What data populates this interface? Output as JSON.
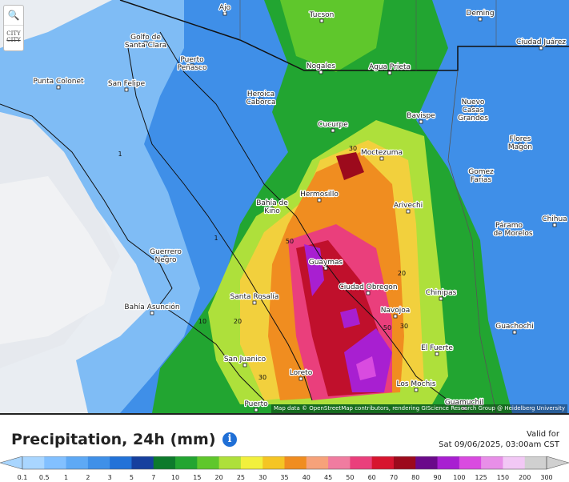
{
  "map": {
    "cities": [
      "Ajo",
      "Tucson",
      "Deming",
      "Golfo de",
      "Santa Clara",
      "Ciudad Juárez",
      "Puerto",
      "Peñasco",
      "Nogales",
      "Agua Prieta",
      "Punta Colonet",
      "San Felipe",
      "Heroica",
      "Caborca",
      "Nuevo",
      "Casas",
      "Grandes",
      "Bavispe",
      "Cucurpe",
      "Flores",
      "Magón",
      "Moctezuma",
      "Gomez",
      "Farias",
      "Hermosillo",
      "Arivechi",
      "Bahía de",
      "Kino",
      "Chihua",
      "Páramo",
      "de Morelos",
      "Guerrero",
      "Negro",
      "Guaymas",
      "Ciudad Obregon",
      "Santa Rosalía",
      "Chinipas",
      "Bahía Asunción",
      "Navojoa",
      "Guachochi",
      "El Fuerte",
      "San Juanico",
      "Loreto",
      "Los Mochis",
      "Guamuchil",
      "Puerto"
    ],
    "contour_labels": [
      "30",
      "50",
      "20",
      "50",
      "30",
      "20",
      "30",
      "10",
      "1",
      "1"
    ],
    "attribution": "Map data © OpenStreetMap contributors, rendering GIScience Research Group @ Heidelberg University",
    "controls": {
      "zoom": "🔍",
      "city_toggle_top": "CITY",
      "city_toggle_bottom": "CITY"
    }
  },
  "legend": {
    "title": "Precipitation, 24h (mm)",
    "info": "i",
    "valid_label": "Valid for",
    "valid_time": "Sat 09/06/2025, 03:00am CST",
    "labels": [
      "0.1",
      "0.5",
      "1",
      "2",
      "3",
      "5",
      "7",
      "10",
      "15",
      "20",
      "25",
      "30",
      "35",
      "40",
      "45",
      "50",
      "60",
      "70",
      "80",
      "90",
      "100",
      "125",
      "150",
      "200",
      "300"
    ],
    "colors": [
      "#a9d6ff",
      "#82c0ff",
      "#5ea9f5",
      "#3f90e8",
      "#2272d8",
      "#163f9e",
      "#0d7a2c",
      "#22a531",
      "#5fc72c",
      "#aee03b",
      "#f2f03d",
      "#f5c524",
      "#f08d20",
      "#f6a27a",
      "#f07ca0",
      "#ea3f7c",
      "#d7142f",
      "#9c0a1c",
      "#6a0a8a",
      "#a81fd1",
      "#d94be0",
      "#e88fe8",
      "#f2c8f5",
      "#d0d0d0"
    ]
  }
}
